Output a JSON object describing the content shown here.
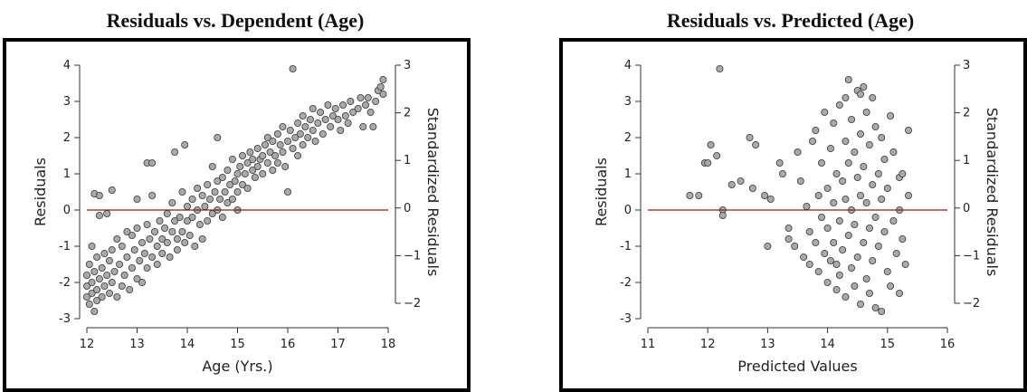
{
  "chart_data": [
    {
      "type": "scatter",
      "title": "Residuals vs. Dependent (Age)",
      "xlabel": "Age (Yrs.)",
      "ylabel": "Residuals",
      "y2label": "Standardized Residuals",
      "xlim": [
        12,
        18
      ],
      "ylim": [
        -3,
        4
      ],
      "y2lim": [
        -2,
        3
      ],
      "xticks": [
        12,
        13,
        14,
        15,
        16,
        17,
        18
      ],
      "yticks": [
        -3,
        -2,
        -1,
        0,
        1,
        2,
        3,
        4
      ],
      "y2ticks": [
        -2,
        -1,
        0,
        1,
        2,
        3
      ],
      "reference_line_y": 0,
      "marker_color": "#a9a9a9",
      "line_color": "#8b1a1a",
      "points": [
        [
          12.0,
          -2.4
        ],
        [
          12.0,
          -2.1
        ],
        [
          12.0,
          -1.8
        ],
        [
          12.05,
          -2.6
        ],
        [
          12.05,
          -1.5
        ],
        [
          12.1,
          -2.3
        ],
        [
          12.1,
          -2.0
        ],
        [
          12.1,
          -1.0
        ],
        [
          12.15,
          -2.8
        ],
        [
          12.15,
          -1.7
        ],
        [
          12.2,
          -2.5
        ],
        [
          12.2,
          -2.2
        ],
        [
          12.2,
          -1.3
        ],
        [
          12.25,
          -1.9
        ],
        [
          12.25,
          -0.15
        ],
        [
          12.3,
          -2.4
        ],
        [
          12.3,
          -1.6
        ],
        [
          12.35,
          -2.1
        ],
        [
          12.35,
          -1.2
        ],
        [
          12.15,
          0.45
        ],
        [
          12.25,
          0.4
        ],
        [
          12.4,
          -0.1
        ],
        [
          12.4,
          -1.8
        ],
        [
          12.45,
          -2.3
        ],
        [
          12.45,
          -1.4
        ],
        [
          12.5,
          -2.0
        ],
        [
          12.5,
          -1.1
        ],
        [
          12.5,
          0.55
        ],
        [
          12.55,
          -1.7
        ],
        [
          12.6,
          -2.4
        ],
        [
          12.6,
          -0.8
        ],
        [
          12.65,
          -1.5
        ],
        [
          12.7,
          -2.1
        ],
        [
          12.7,
          -1.0
        ],
        [
          12.75,
          -1.8
        ],
        [
          12.8,
          -0.6
        ],
        [
          12.8,
          -1.3
        ],
        [
          12.85,
          -2.2
        ],
        [
          12.9,
          -1.6
        ],
        [
          12.9,
          -0.7
        ],
        [
          12.95,
          -1.1
        ],
        [
          13.0,
          -1.9
        ],
        [
          13.0,
          -0.5
        ],
        [
          13.0,
          0.3
        ],
        [
          13.05,
          -1.4
        ],
        [
          13.1,
          -0.9
        ],
        [
          13.1,
          -2.0
        ],
        [
          13.15,
          -1.2
        ],
        [
          13.2,
          -0.4
        ],
        [
          13.2,
          1.3
        ],
        [
          13.2,
          -1.6
        ],
        [
          13.25,
          -0.8
        ],
        [
          13.3,
          -1.3
        ],
        [
          13.3,
          1.3
        ],
        [
          13.3,
          0.4
        ],
        [
          13.35,
          -0.6
        ],
        [
          13.4,
          -1.0
        ],
        [
          13.4,
          -1.5
        ],
        [
          13.45,
          -0.3
        ],
        [
          13.5,
          -0.8
        ],
        [
          13.5,
          -1.2
        ],
        [
          13.55,
          -0.5
        ],
        [
          13.6,
          -0.9
        ],
        [
          13.6,
          -0.1
        ],
        [
          13.65,
          -1.3
        ],
        [
          13.7,
          -0.6
        ],
        [
          13.7,
          0.2
        ],
        [
          13.75,
          -0.3
        ],
        [
          13.75,
          1.6
        ],
        [
          13.8,
          -0.8
        ],
        [
          13.8,
          -1.1
        ],
        [
          13.85,
          -0.2
        ],
        [
          13.9,
          -0.6
        ],
        [
          13.9,
          0.5
        ],
        [
          13.95,
          -0.9
        ],
        [
          13.95,
          1.8
        ],
        [
          14.0,
          -0.3
        ],
        [
          14.0,
          0.1
        ],
        [
          14.05,
          -0.7
        ],
        [
          14.1,
          0.3
        ],
        [
          14.1,
          -0.2
        ],
        [
          14.15,
          -1.0
        ],
        [
          14.2,
          0.0
        ],
        [
          14.2,
          0.6
        ],
        [
          14.25,
          -0.4
        ],
        [
          14.3,
          0.4
        ],
        [
          14.3,
          -0.8
        ],
        [
          14.35,
          0.1
        ],
        [
          14.4,
          0.7
        ],
        [
          14.4,
          -0.3
        ],
        [
          14.45,
          0.3
        ],
        [
          14.5,
          -0.1
        ],
        [
          14.5,
          1.2
        ],
        [
          14.55,
          0.5
        ],
        [
          14.6,
          0.0
        ],
        [
          14.6,
          0.8
        ],
        [
          14.6,
          2.0
        ],
        [
          14.65,
          0.3
        ],
        [
          14.7,
          0.9
        ],
        [
          14.7,
          -0.2
        ],
        [
          14.75,
          0.5
        ],
        [
          14.8,
          0.2
        ],
        [
          14.8,
          1.1
        ],
        [
          14.85,
          0.7
        ],
        [
          14.9,
          0.3
        ],
        [
          14.9,
          1.4
        ],
        [
          14.95,
          0.8
        ],
        [
          15.0,
          0.5
        ],
        [
          15.0,
          1.0
        ],
        [
          15.0,
          0.0
        ],
        [
          15.05,
          1.2
        ],
        [
          15.1,
          0.7
        ],
        [
          15.1,
          1.5
        ],
        [
          15.15,
          1.0
        ],
        [
          15.2,
          1.3
        ],
        [
          15.2,
          0.6
        ],
        [
          15.25,
          1.6
        ],
        [
          15.3,
          1.1
        ],
        [
          15.3,
          1.4
        ],
        [
          15.35,
          0.9
        ],
        [
          15.4,
          1.2
        ],
        [
          15.4,
          1.7
        ],
        [
          15.45,
          1.4
        ],
        [
          15.5,
          1.0
        ],
        [
          15.5,
          1.5
        ],
        [
          15.55,
          1.8
        ],
        [
          15.6,
          1.3
        ],
        [
          15.6,
          2.0
        ],
        [
          15.65,
          1.6
        ],
        [
          15.7,
          1.1
        ],
        [
          15.7,
          1.9
        ],
        [
          15.75,
          1.5
        ],
        [
          15.8,
          2.1
        ],
        [
          15.8,
          1.3
        ],
        [
          15.85,
          1.8
        ],
        [
          15.9,
          1.6
        ],
        [
          15.9,
          2.3
        ],
        [
          15.95,
          1.2
        ],
        [
          16.0,
          1.9
        ],
        [
          16.0,
          0.5
        ],
        [
          16.05,
          2.2
        ],
        [
          16.1,
          1.7
        ],
        [
          16.1,
          3.9
        ],
        [
          16.15,
          2.0
        ],
        [
          16.2,
          2.4
        ],
        [
          16.2,
          1.5
        ],
        [
          16.25,
          2.1
        ],
        [
          16.3,
          2.6
        ],
        [
          16.3,
          1.8
        ],
        [
          16.35,
          2.3
        ],
        [
          16.4,
          2.0
        ],
        [
          16.45,
          2.5
        ],
        [
          16.5,
          2.2
        ],
        [
          16.5,
          2.8
        ],
        [
          16.55,
          1.9
        ],
        [
          16.6,
          2.4
        ],
        [
          16.65,
          2.7
        ],
        [
          16.7,
          2.1
        ],
        [
          16.75,
          2.5
        ],
        [
          16.8,
          2.9
        ],
        [
          16.85,
          2.3
        ],
        [
          16.9,
          2.6
        ],
        [
          16.95,
          2.8
        ],
        [
          17.0,
          2.5
        ],
        [
          17.05,
          2.2
        ],
        [
          17.1,
          2.9
        ],
        [
          17.15,
          2.6
        ],
        [
          17.2,
          2.4
        ],
        [
          17.25,
          3.0
        ],
        [
          17.3,
          2.7
        ],
        [
          17.4,
          2.8
        ],
        [
          17.45,
          3.1
        ],
        [
          17.5,
          2.3
        ],
        [
          17.55,
          2.9
        ],
        [
          17.6,
          3.1
        ],
        [
          17.65,
          2.7
        ],
        [
          17.7,
          2.3
        ],
        [
          17.75,
          3.0
        ],
        [
          17.8,
          3.3
        ],
        [
          17.85,
          3.4
        ],
        [
          17.9,
          3.6
        ],
        [
          17.9,
          3.2
        ]
      ]
    },
    {
      "type": "scatter",
      "title": "Residuals vs. Predicted (Age)",
      "xlabel": "Predicted Values",
      "ylabel": "Residuals",
      "y2label": "Standardized Residuals",
      "xlim": [
        11,
        16
      ],
      "ylim": [
        -3,
        4
      ],
      "y2lim": [
        -2,
        3
      ],
      "xticks": [
        11,
        12,
        13,
        14,
        15,
        16
      ],
      "yticks": [
        -3,
        -2,
        -1,
        0,
        1,
        2,
        3,
        4
      ],
      "y2ticks": [
        -2,
        -1,
        0,
        1,
        2,
        3
      ],
      "reference_line_y": 0,
      "marker_color": "#a9a9a9",
      "line_color": "#8b1a1a",
      "points": [
        [
          12.2,
          3.9
        ],
        [
          12.05,
          1.8
        ],
        [
          12.15,
          1.5
        ],
        [
          11.95,
          1.3
        ],
        [
          12.0,
          1.3
        ],
        [
          12.7,
          2.0
        ],
        [
          12.8,
          1.8
        ],
        [
          11.7,
          0.4
        ],
        [
          11.85,
          0.4
        ],
        [
          12.25,
          0.0
        ],
        [
          12.25,
          -0.15
        ],
        [
          12.4,
          0.7
        ],
        [
          12.55,
          0.8
        ],
        [
          12.75,
          0.6
        ],
        [
          12.95,
          0.4
        ],
        [
          13.05,
          0.3
        ],
        [
          13.0,
          -1.0
        ],
        [
          13.2,
          1.3
        ],
        [
          13.25,
          1.0
        ],
        [
          13.35,
          -0.5
        ],
        [
          13.35,
          -0.8
        ],
        [
          13.45,
          -1.0
        ],
        [
          13.5,
          1.6
        ],
        [
          13.55,
          0.8
        ],
        [
          13.6,
          -1.3
        ],
        [
          13.65,
          0.1
        ],
        [
          13.7,
          -0.6
        ],
        [
          13.7,
          -1.5
        ],
        [
          13.75,
          1.9
        ],
        [
          13.8,
          2.2
        ],
        [
          13.8,
          -0.9
        ],
        [
          13.85,
          0.4
        ],
        [
          13.85,
          -1.7
        ],
        [
          13.9,
          1.3
        ],
        [
          13.9,
          -0.2
        ],
        [
          13.95,
          -1.2
        ],
        [
          13.95,
          2.7
        ],
        [
          14.0,
          0.6
        ],
        [
          14.0,
          -2.0
        ],
        [
          14.0,
          -0.5
        ],
        [
          14.05,
          1.7
        ],
        [
          14.05,
          -1.4
        ],
        [
          14.1,
          0.2
        ],
        [
          14.1,
          2.4
        ],
        [
          14.1,
          -0.9
        ],
        [
          14.15,
          -2.2
        ],
        [
          14.15,
          1.0
        ],
        [
          14.2,
          -0.3
        ],
        [
          14.2,
          2.9
        ],
        [
          14.2,
          -1.8
        ],
        [
          14.25,
          0.8
        ],
        [
          14.25,
          -1.1
        ],
        [
          14.3,
          1.9
        ],
        [
          14.3,
          -2.4
        ],
        [
          14.3,
          0.3
        ],
        [
          14.35,
          3.6
        ],
        [
          14.35,
          -0.7
        ],
        [
          14.35,
          1.3
        ],
        [
          14.4,
          -1.6
        ],
        [
          14.4,
          2.5
        ],
        [
          14.4,
          0.0
        ],
        [
          14.45,
          -2.1
        ],
        [
          14.45,
          1.6
        ],
        [
          14.45,
          -0.4
        ],
        [
          14.5,
          3.3
        ],
        [
          14.5,
          0.9
        ],
        [
          14.5,
          -1.3
        ],
        [
          14.55,
          -2.6
        ],
        [
          14.55,
          2.1
        ],
        [
          14.55,
          0.4
        ],
        [
          14.6,
          -0.9
        ],
        [
          14.6,
          3.4
        ],
        [
          14.6,
          1.2
        ],
        [
          14.65,
          -1.9
        ],
        [
          14.65,
          0.2
        ],
        [
          14.65,
          2.7
        ],
        [
          14.7,
          -0.5
        ],
        [
          14.7,
          1.8
        ],
        [
          14.7,
          -2.3
        ],
        [
          14.75,
          0.7
        ],
        [
          14.75,
          -1.4
        ],
        [
          14.75,
          3.1
        ],
        [
          14.8,
          -0.2
        ],
        [
          14.8,
          2.3
        ],
        [
          14.8,
          -2.7
        ],
        [
          14.85,
          1.0
        ],
        [
          14.85,
          -1.0
        ],
        [
          14.9,
          0.3
        ],
        [
          14.9,
          -2.8
        ],
        [
          14.9,
          2.0
        ],
        [
          14.95,
          -0.6
        ],
        [
          14.95,
          1.4
        ],
        [
          15.0,
          -1.7
        ],
        [
          15.0,
          0.6
        ],
        [
          15.05,
          2.6
        ],
        [
          15.05,
          -2.1
        ],
        [
          15.1,
          -0.3
        ],
        [
          15.1,
          1.6
        ],
        [
          15.15,
          -1.2
        ],
        [
          15.2,
          0.9
        ],
        [
          15.2,
          -2.3
        ],
        [
          15.25,
          -0.8
        ],
        [
          15.25,
          1.0
        ],
        [
          15.3,
          -1.5
        ],
        [
          15.35,
          0.4
        ],
        [
          15.35,
          2.2
        ],
        [
          15.2,
          0.0
        ],
        [
          14.3,
          3.1
        ],
        [
          14.55,
          3.2
        ],
        [
          14.15,
          -1.5
        ]
      ]
    }
  ]
}
